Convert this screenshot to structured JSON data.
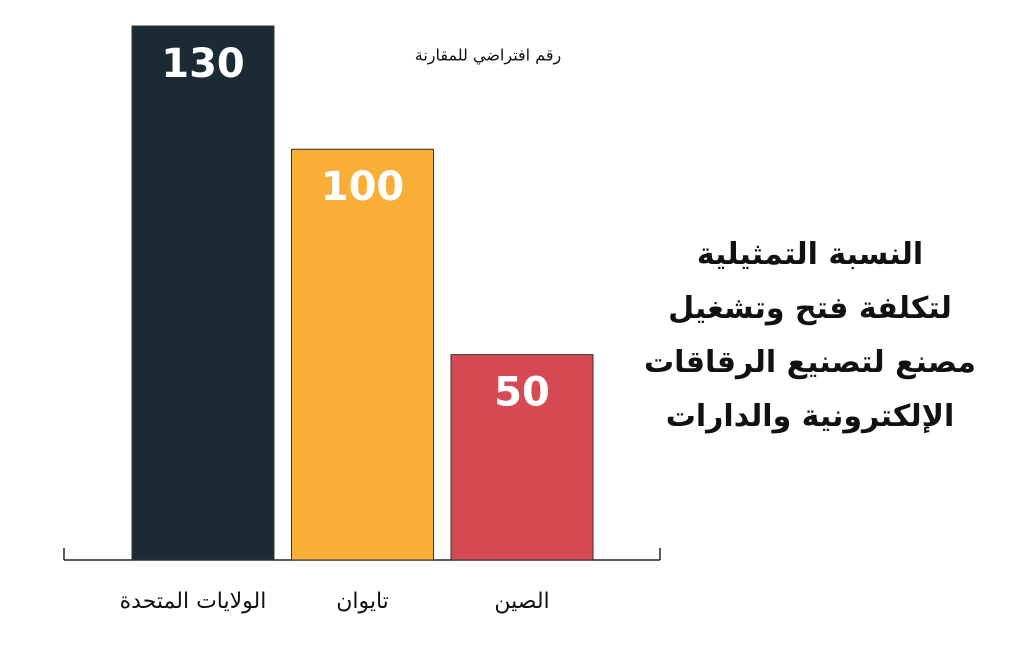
{
  "chart_data": {
    "type": "bar",
    "title": "النسبة التمثيلية\nلتكلفة فتح وتشغيل\nمصنع لتصنيع الرقاقات\nالإلكترونية والدارات",
    "annotation": "رقم افتراضي للمقارنة",
    "categories": [
      "الولايات المتحدة",
      "تايوان",
      "الصين"
    ],
    "values": [
      130,
      100,
      50
    ],
    "colors": [
      "#1c2b33",
      "#f8ae37",
      "#d64a53"
    ],
    "ylim": [
      0,
      130
    ]
  }
}
